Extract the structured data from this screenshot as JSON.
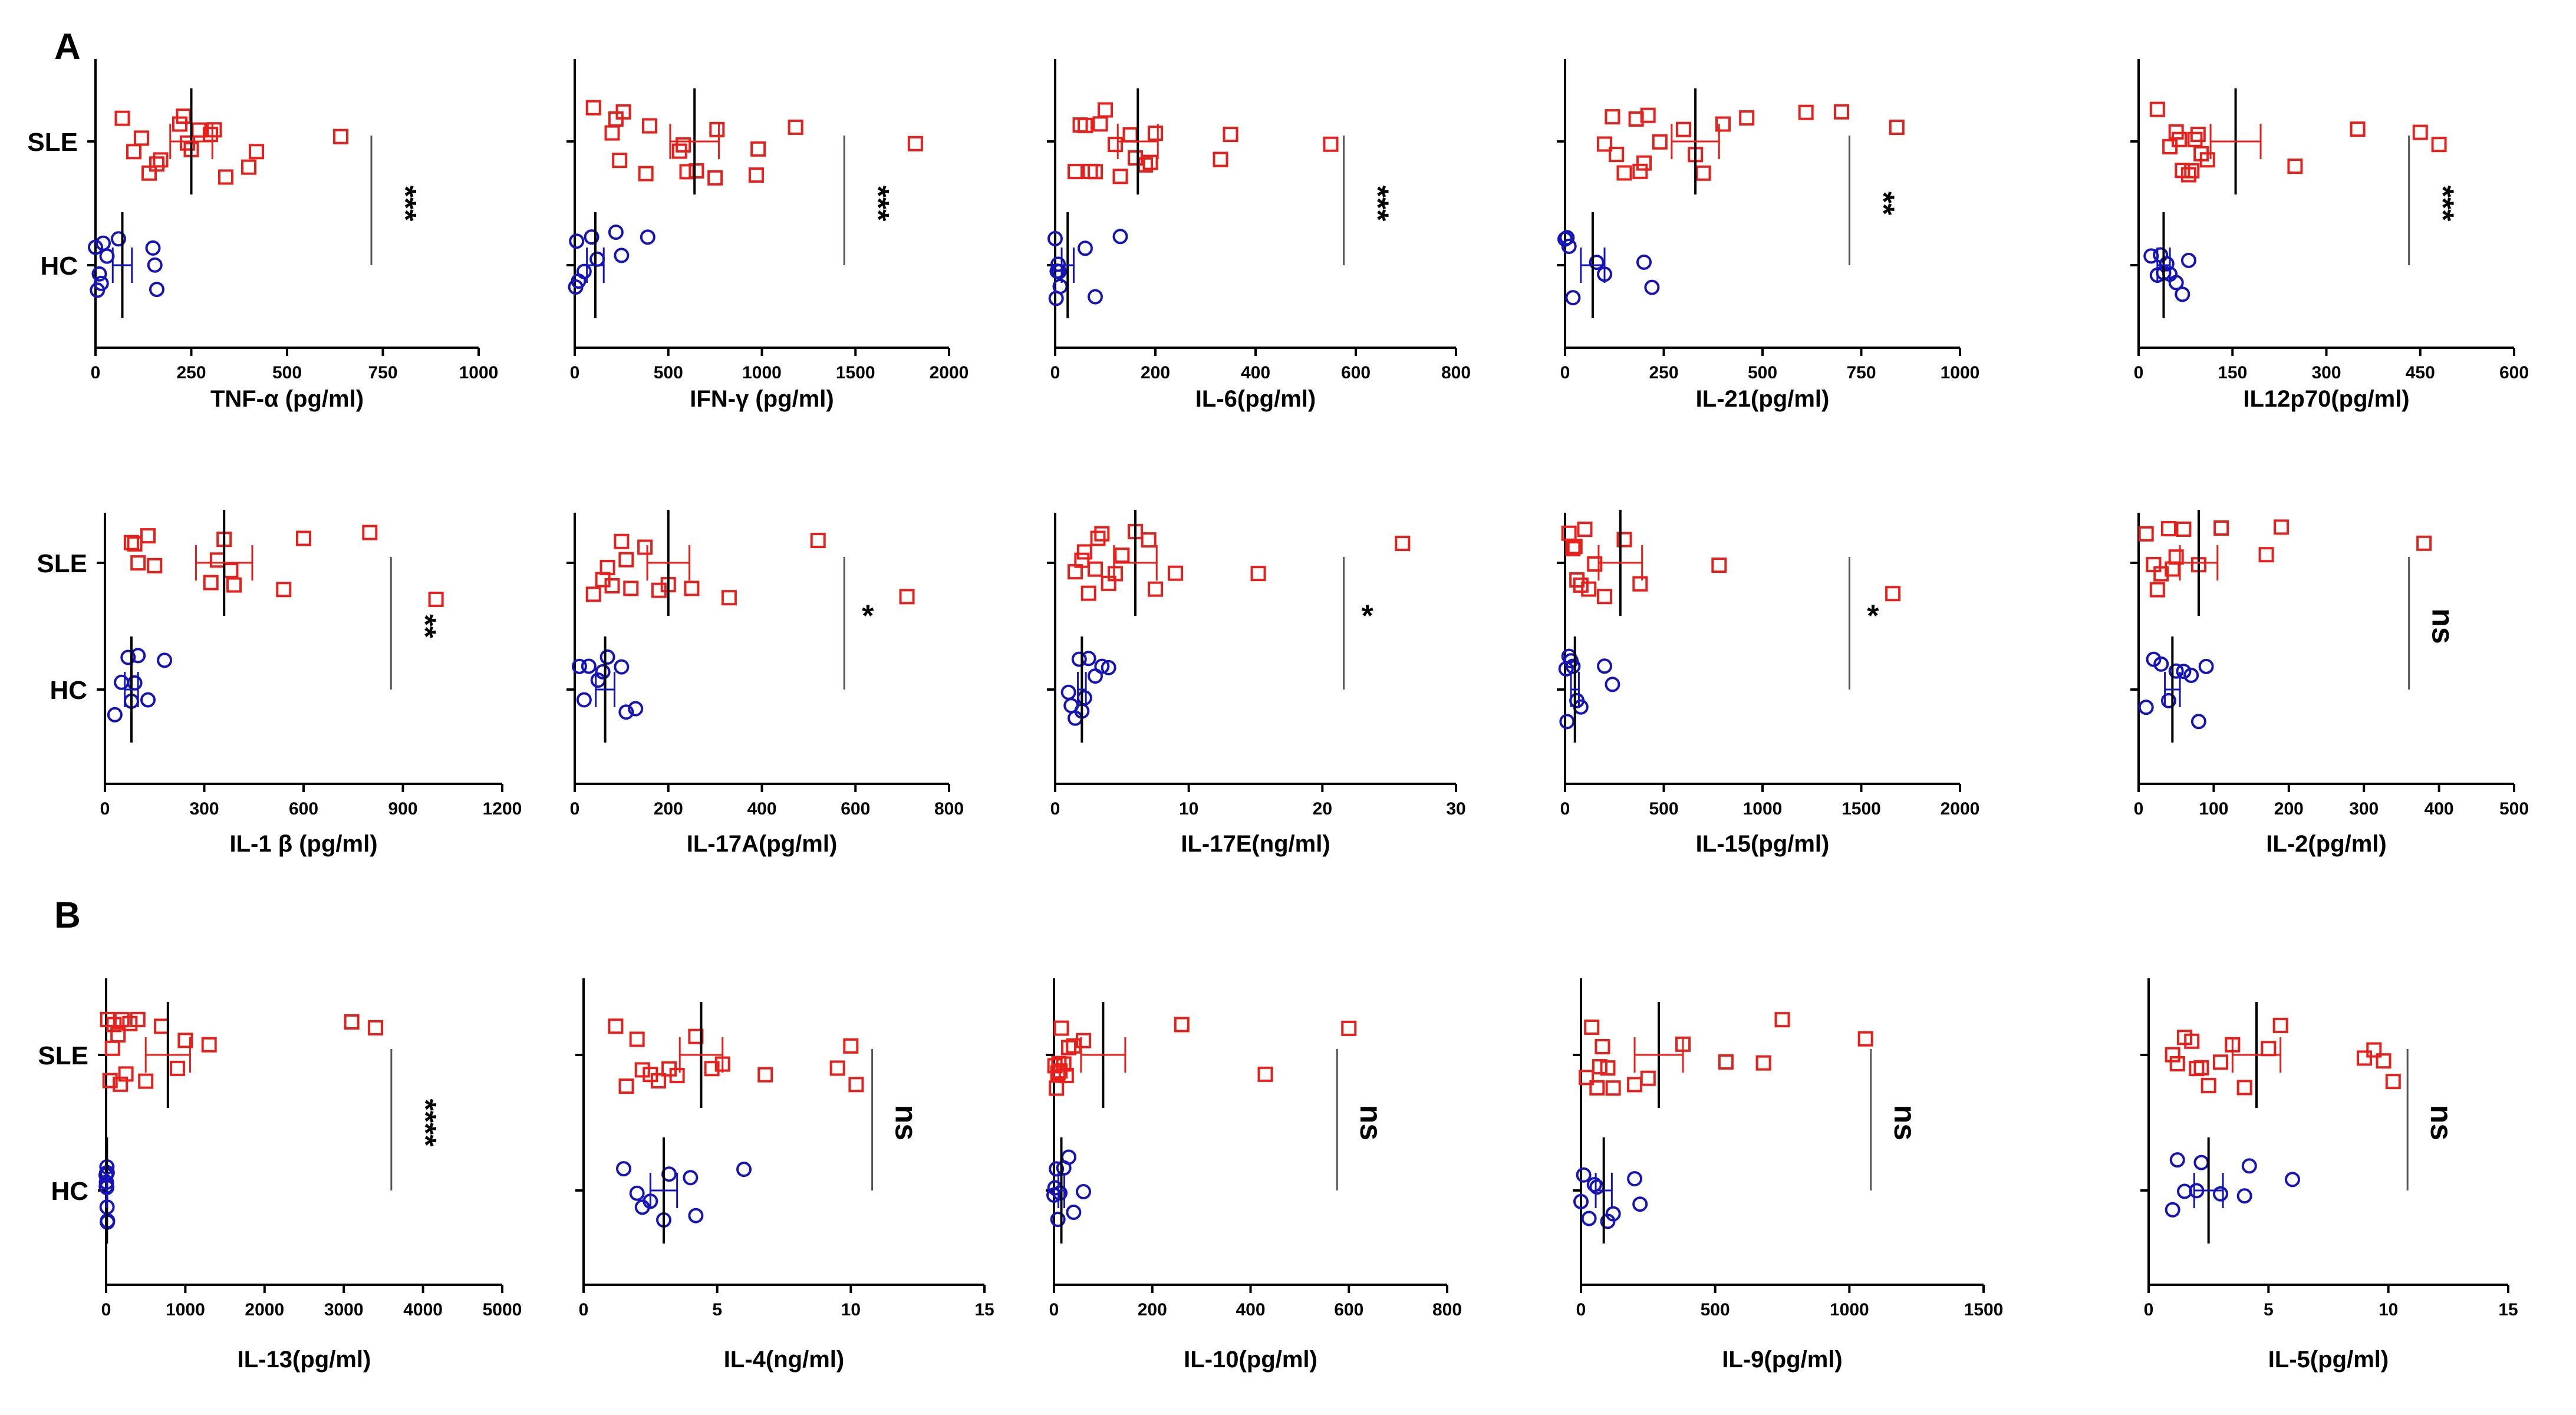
{
  "panel_labels": {
    "a": "A",
    "b": "B"
  },
  "colors": {
    "sle": "#e8201b",
    "hc": "#1414b8",
    "axis": "#000000",
    "bracket": "#555555"
  },
  "group_labels": [
    "SLE",
    "HC"
  ],
  "chart_data": [
    {
      "type": "scatter",
      "title": "",
      "xlabel": "TNF-α (pg/ml)",
      "xlim": [
        0,
        1000
      ],
      "ticks": [
        0,
        250,
        500,
        750,
        1000
      ],
      "significance": "***",
      "sig_vertical": true,
      "groups": [
        {
          "name": "SLE",
          "mean": 250,
          "sem": 55,
          "values": [
            70,
            120,
            170,
            240,
            250,
            310,
            340,
            400,
            140,
            230,
            270,
            300,
            420,
            220,
            100,
            160,
            640
          ]
        },
        {
          "name": "HC",
          "mean": 70,
          "sem": 25,
          "values": [
            0,
            5,
            10,
            15,
            20,
            30,
            60,
            150,
            160,
            155
          ]
        }
      ]
    },
    {
      "type": "scatter",
      "title": "",
      "xlabel": "IFN-γ (pg/ml)",
      "xlim": [
        0,
        2000
      ],
      "ticks": [
        0,
        500,
        1000,
        1500,
        2000
      ],
      "significance": "***",
      "sig_vertical": true,
      "groups": [
        {
          "name": "SLE",
          "mean": 640,
          "sem": 130,
          "values": [
            100,
            220,
            240,
            380,
            560,
            600,
            650,
            750,
            980,
            1180,
            200,
            400,
            580,
            760,
            970,
            1820,
            260
          ]
        },
        {
          "name": "HC",
          "mean": 110,
          "sem": 45,
          "values": [
            5,
            10,
            20,
            50,
            90,
            120,
            220,
            250,
            390
          ]
        }
      ]
    },
    {
      "type": "scatter",
      "title": "",
      "xlabel": "IL-6(pg/ml)",
      "xlim": [
        0,
        800
      ],
      "ticks": [
        0,
        200,
        400,
        600,
        800
      ],
      "significance": "***",
      "sig_vertical": true,
      "groups": [
        {
          "name": "SLE",
          "mean": 165,
          "sem": 40,
          "values": [
            40,
            60,
            80,
            100,
            120,
            150,
            180,
            190,
            200,
            330,
            350,
            550,
            50,
            70,
            130,
            160,
            90
          ]
        },
        {
          "name": "HC",
          "mean": 25,
          "sem": 12,
          "values": [
            0,
            2,
            4,
            6,
            8,
            10,
            60,
            80,
            130
          ]
        }
      ]
    },
    {
      "type": "scatter",
      "title": "",
      "xlabel": "IL-21(pg/ml)",
      "xlim": [
        0,
        1000
      ],
      "ticks": [
        0,
        250,
        500,
        750,
        1000
      ],
      "significance": "**",
      "sig_vertical": true,
      "groups": [
        {
          "name": "SLE",
          "mean": 330,
          "sem": 60,
          "values": [
            100,
            130,
            150,
            180,
            190,
            200,
            240,
            300,
            350,
            400,
            460,
            610,
            700,
            840,
            120,
            210,
            330
          ]
        },
        {
          "name": "HC",
          "mean": 70,
          "sem": 30,
          "values": [
            0,
            5,
            10,
            20,
            80,
            100,
            200,
            220
          ]
        }
      ]
    },
    {
      "type": "scatter",
      "title": "",
      "xlabel": "IL12p70(pg/ml)",
      "xlim": [
        0,
        600
      ],
      "ticks": [
        0,
        150,
        300,
        450,
        600
      ],
      "significance": "***",
      "sig_vertical": true,
      "groups": [
        {
          "name": "SLE",
          "mean": 155,
          "sem": 40,
          "values": [
            30,
            50,
            60,
            70,
            80,
            90,
            100,
            110,
            250,
            350,
            450,
            480,
            65,
            85,
            95
          ]
        },
        {
          "name": "HC",
          "mean": 40,
          "sem": 10,
          "values": [
            20,
            30,
            35,
            40,
            45,
            50,
            60,
            70,
            80
          ]
        }
      ]
    },
    {
      "type": "scatter",
      "title": "",
      "xlabel": "IL-1 β (pg/ml)",
      "xlim": [
        0,
        1200
      ],
      "ticks": [
        0,
        300,
        600,
        900,
        1200
      ],
      "significance": "**",
      "sig_vertical": true,
      "groups": [
        {
          "name": "SLE",
          "mean": 360,
          "sem": 85,
          "values": [
            80,
            100,
            150,
            320,
            340,
            360,
            380,
            540,
            600,
            800,
            1000,
            130,
            90,
            390
          ]
        },
        {
          "name": "HC",
          "mean": 80,
          "sem": 20,
          "values": [
            30,
            50,
            70,
            80,
            90,
            100,
            130,
            180
          ]
        }
      ]
    },
    {
      "type": "scatter",
      "title": "",
      "xlabel": "IL-17A(pg/ml)",
      "xlim": [
        0,
        800
      ],
      "ticks": [
        0,
        200,
        400,
        600,
        800
      ],
      "significance": "*",
      "sig_vertical": false,
      "groups": [
        {
          "name": "SLE",
          "mean": 200,
          "sem": 45,
          "values": [
            40,
            60,
            80,
            100,
            120,
            150,
            180,
            200,
            250,
            330,
            520,
            710,
            70,
            110
          ]
        },
        {
          "name": "HC",
          "mean": 65,
          "sem": 20,
          "values": [
            10,
            20,
            30,
            50,
            60,
            70,
            100,
            110,
            130
          ]
        }
      ]
    },
    {
      "type": "scatter",
      "title": "",
      "xlabel": "IL-17E(ng/ml)",
      "xlim": [
        0,
        30
      ],
      "ticks": [
        0,
        10,
        20,
        30
      ],
      "significance": "*",
      "sig_vertical": false,
      "groups": [
        {
          "name": "SLE",
          "mean": 6,
          "sem": 1.6,
          "values": [
            1.5,
            2,
            2.5,
            3,
            3.5,
            4,
            5,
            6,
            7,
            7.5,
            9,
            15.2,
            26,
            2.2,
            3.2,
            4.5
          ]
        },
        {
          "name": "HC",
          "mean": 2,
          "sem": 0.3,
          "values": [
            1,
            1.2,
            1.5,
            1.8,
            2,
            2.2,
            2.5,
            3,
            3.5,
            4
          ]
        }
      ]
    },
    {
      "type": "scatter",
      "title": "",
      "xlabel": "IL-15(pg/ml)",
      "xlim": [
        0,
        2000
      ],
      "ticks": [
        0,
        500,
        1000,
        1500,
        2000
      ],
      "significance": "*",
      "sig_vertical": false,
      "groups": [
        {
          "name": "SLE",
          "mean": 280,
          "sem": 110,
          "values": [
            20,
            40,
            60,
            80,
            100,
            150,
            200,
            300,
            380,
            780,
            1660,
            120,
            50
          ]
        },
        {
          "name": "HC",
          "mean": 50,
          "sem": 20,
          "values": [
            5,
            10,
            20,
            30,
            40,
            60,
            80,
            200,
            240
          ]
        }
      ]
    },
    {
      "type": "scatter",
      "title": "",
      "xlabel": "IL-2(pg/ml)",
      "xlim": [
        0,
        500
      ],
      "ticks": [
        0,
        100,
        200,
        300,
        400,
        500
      ],
      "significance": "ns",
      "sig_vertical": true,
      "groups": [
        {
          "name": "SLE",
          "mean": 80,
          "sem": 25,
          "values": [
            10,
            20,
            30,
            40,
            50,
            60,
            80,
            110,
            170,
            190,
            380,
            25,
            45
          ]
        },
        {
          "name": "HC",
          "mean": 45,
          "sem": 10,
          "values": [
            10,
            20,
            30,
            40,
            50,
            60,
            70,
            80,
            90
          ]
        }
      ]
    },
    {
      "type": "scatter",
      "title": "",
      "xlabel": "IL-13(pg/ml)",
      "xlim": [
        0,
        5000
      ],
      "ticks": [
        0,
        1000,
        2000,
        3000,
        4000,
        5000
      ],
      "significance": "****",
      "sig_vertical": true,
      "groups": [
        {
          "name": "SLE",
          "mean": 780,
          "sem": 280,
          "values": [
            20,
            50,
            100,
            150,
            200,
            250,
            300,
            400,
            500,
            700,
            900,
            1000,
            1300,
            3100,
            3400,
            80,
            180
          ]
        },
        {
          "name": "HC",
          "mean": 10,
          "sem": 5,
          "values": [
            0,
            2,
            4,
            6,
            8,
            10,
            12,
            14,
            16,
            18
          ]
        }
      ]
    },
    {
      "type": "scatter",
      "title": "",
      "xlabel": "IL-4(ng/ml)",
      "xlim": [
        0,
        15
      ],
      "ticks": [
        0,
        5,
        10,
        15
      ],
      "significance": "ns",
      "sig_vertical": true,
      "groups": [
        {
          "name": "SLE",
          "mean": 4.4,
          "sem": 0.8,
          "values": [
            1.2,
            1.6,
            2,
            2.2,
            2.8,
            3.2,
            3.5,
            4.2,
            4.8,
            5.2,
            6.8,
            9.5,
            10,
            10.2,
            2.5
          ]
        },
        {
          "name": "HC",
          "mean": 3,
          "sem": 0.5,
          "values": [
            1.5,
            2,
            2.2,
            2.5,
            3,
            3.2,
            4,
            4.2,
            6
          ]
        }
      ]
    },
    {
      "type": "scatter",
      "title": "",
      "xlabel": "IL-10(pg/ml)",
      "xlim": [
        0,
        800
      ],
      "ticks": [
        0,
        200,
        400,
        600,
        800
      ],
      "significance": "ns",
      "sig_vertical": true,
      "groups": [
        {
          "name": "SLE",
          "mean": 100,
          "sem": 45,
          "values": [
            2,
            5,
            8,
            10,
            15,
            20,
            30,
            40,
            60,
            260,
            430,
            600,
            25,
            12
          ]
        },
        {
          "name": "HC",
          "mean": 15,
          "sem": 6,
          "values": [
            0,
            2,
            5,
            8,
            12,
            20,
            30,
            40,
            60
          ]
        }
      ]
    },
    {
      "type": "scatter",
      "title": "",
      "xlabel": "IL-9(pg/ml)",
      "xlim": [
        0,
        1500
      ],
      "ticks": [
        0,
        500,
        1000,
        1500
      ],
      "significance": "ns",
      "sig_vertical": true,
      "groups": [
        {
          "name": "SLE",
          "mean": 290,
          "sem": 90,
          "values": [
            20,
            40,
            60,
            80,
            100,
            120,
            200,
            250,
            380,
            540,
            680,
            750,
            1060,
            70
          ]
        },
        {
          "name": "HC",
          "mean": 85,
          "sem": 30,
          "values": [
            0,
            10,
            30,
            50,
            100,
            120,
            200,
            220,
            60
          ]
        }
      ]
    },
    {
      "type": "scatter",
      "title": "",
      "xlabel": "IL-5(pg/ml)",
      "xlim": [
        0,
        15
      ],
      "ticks": [
        0,
        5,
        10,
        15
      ],
      "significance": "ns",
      "sig_vertical": true,
      "groups": [
        {
          "name": "SLE",
          "mean": 4.5,
          "sem": 1,
          "values": [
            1,
            1.2,
            1.5,
            2,
            2.2,
            2.5,
            3,
            3.5,
            4,
            5,
            5.5,
            9,
            9.4,
            9.8,
            10.2,
            1.8
          ]
        },
        {
          "name": "HC",
          "mean": 2.5,
          "sem": 0.6,
          "values": [
            1,
            1.2,
            1.5,
            2,
            2.2,
            3,
            4,
            4.2,
            6
          ]
        }
      ]
    }
  ]
}
